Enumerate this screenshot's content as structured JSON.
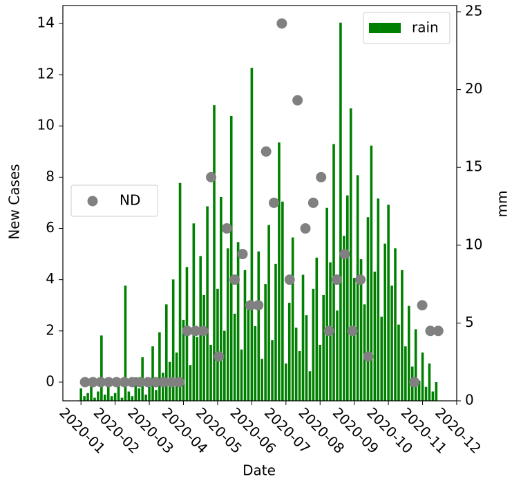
{
  "chart_data": {
    "type": "combo",
    "xlabel": "Date",
    "ylabel": "New Cases",
    "y2label": "mm",
    "xlim": [
      -0.53,
      11.0
    ],
    "ylim": [
      -0.73,
      14.7
    ],
    "y2lim": [
      0,
      25.4
    ],
    "xticks": [
      {
        "value": 0,
        "label": "2020-01"
      },
      {
        "value": 1,
        "label": "2020-02"
      },
      {
        "value": 2,
        "label": "2020-03"
      },
      {
        "value": 3,
        "label": "2020-04"
      },
      {
        "value": 4,
        "label": "2020-05"
      },
      {
        "value": 5,
        "label": "2020-06"
      },
      {
        "value": 6,
        "label": "2020-07"
      },
      {
        "value": 7,
        "label": "2020-08"
      },
      {
        "value": 8,
        "label": "2020-09"
      },
      {
        "value": 9,
        "label": "2020-10"
      },
      {
        "value": 10,
        "label": "2020-11"
      },
      {
        "value": 11,
        "label": "2020-12"
      }
    ],
    "yticks": [
      0,
      2,
      4,
      6,
      8,
      10,
      12,
      14
    ],
    "y2ticks": [
      0,
      5,
      10,
      15,
      20,
      25
    ],
    "series": [
      {
        "name": "rain",
        "type": "bar",
        "axis": "y2",
        "color": "#008000",
        "legend": "upper right",
        "x": [
          0.0,
          0.1,
          0.2,
          0.3,
          0.4,
          0.5,
          0.6,
          0.7,
          0.8,
          0.9,
          1.0,
          1.1,
          1.2,
          1.3,
          1.4,
          1.5,
          1.6,
          1.7,
          1.8,
          1.9,
          2.0,
          2.1,
          2.2,
          2.3,
          2.4,
          2.5,
          2.6,
          2.7,
          2.8,
          2.9,
          3.0,
          3.1,
          3.2,
          3.3,
          3.4,
          3.5,
          3.6,
          3.7,
          3.8,
          3.9,
          4.0,
          4.1,
          4.2,
          4.3,
          4.4,
          4.5,
          4.6,
          4.7,
          4.8,
          4.9,
          5.0,
          5.1,
          5.2,
          5.3,
          5.4,
          5.5,
          5.6,
          5.7,
          5.8,
          5.9,
          6.0,
          6.1,
          6.2,
          6.3,
          6.4,
          6.5,
          6.6,
          6.7,
          6.8,
          6.9,
          7.0,
          7.1,
          7.2,
          7.3,
          7.4,
          7.5,
          7.6,
          7.7,
          7.8,
          7.9,
          8.0,
          8.1,
          8.2,
          8.3,
          8.4,
          8.5,
          8.6,
          8.7,
          8.8,
          8.9,
          9.0,
          9.1,
          9.2,
          9.3,
          9.4,
          9.5,
          9.6,
          9.7,
          9.8,
          9.9,
          10.0,
          10.1,
          10.2,
          10.3,
          10.4
        ],
        "values": [
          0.8,
          0.3,
          0.5,
          1.2,
          0.2,
          0.6,
          4.2,
          0.4,
          0.9,
          0.3,
          0.5,
          1.1,
          0.2,
          7.4,
          0.6,
          0.3,
          1.5,
          0.8,
          2.8,
          0.4,
          1.2,
          3.5,
          0.7,
          4.4,
          1.8,
          6.2,
          2.5,
          7.8,
          3.1,
          14.0,
          5.2,
          8.6,
          2.3,
          11.4,
          4.1,
          9.3,
          6.8,
          12.5,
          3.6,
          19.0,
          7.2,
          13.1,
          4.5,
          9.8,
          18.3,
          5.6,
          10.2,
          3.3,
          8.4,
          6.1,
          21.4,
          4.8,
          9.6,
          2.7,
          7.5,
          11.3,
          3.9,
          8.8,
          16.6,
          12.8,
          2.4,
          6.3,
          10.5,
          4.7,
          3.2,
          8.1,
          5.5,
          1.9,
          7.2,
          9.2,
          3.6,
          6.8,
          12.4,
          8.9,
          16.5,
          5.8,
          24.3,
          10.6,
          13.2,
          18.8,
          7.9,
          14.5,
          9.1,
          6.2,
          11.8,
          16.4,
          8.3,
          13.0,
          5.4,
          10.1,
          12.6,
          7.4,
          9.8,
          4.9,
          8.4,
          3.5,
          6.1,
          2.2,
          4.6,
          1.3,
          3.1,
          0.9,
          2.4,
          0.6,
          1.2
        ]
      },
      {
        "name": "ND",
        "type": "scatter",
        "color": "#808080",
        "legend": "center left",
        "x": [
          0.12,
          0.35,
          0.58,
          0.81,
          1.04,
          1.27,
          1.5,
          1.73,
          1.96,
          2.19,
          2.42,
          2.65,
          2.88,
          3.11,
          3.35,
          3.58,
          3.81,
          4.04,
          4.27,
          4.5,
          4.73,
          4.96,
          5.19,
          5.42,
          5.65,
          5.88,
          6.11,
          6.34,
          6.57,
          6.8,
          7.03,
          7.26,
          7.49,
          7.72,
          7.95,
          8.18,
          8.41,
          9.76,
          9.99,
          10.23,
          10.46
        ],
        "values": [
          0,
          0,
          0,
          0,
          0,
          0,
          0,
          0,
          0,
          0,
          0,
          0,
          0,
          2,
          2,
          2,
          8,
          1,
          6,
          4,
          5,
          3,
          3,
          9,
          7,
          14,
          4,
          11,
          6,
          7,
          8,
          2,
          4,
          5,
          2,
          4,
          1,
          0,
          3,
          2,
          2
        ]
      }
    ]
  }
}
